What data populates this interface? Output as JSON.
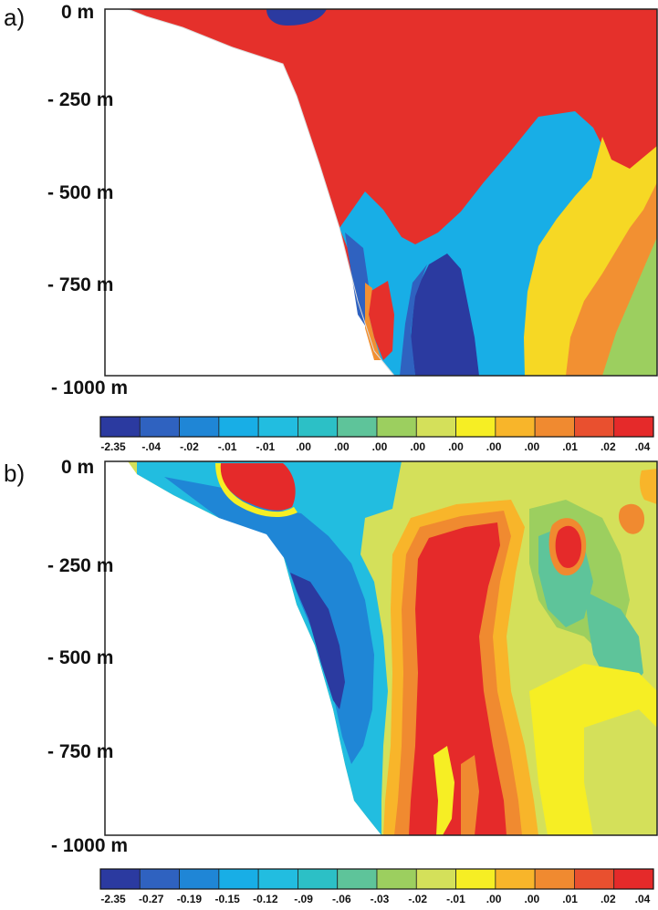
{
  "panels": [
    {
      "label": "a)",
      "depth_labels": [
        "0 m",
        "- 250 m",
        "- 500 m",
        "- 750 m",
        "- 1000 m"
      ],
      "colorbar_ticks": [
        "-2.35",
        "-.04",
        "-.02",
        "-.01",
        "-.01",
        ".00",
        ".00",
        ".00",
        ".00",
        ".00",
        ".00",
        ".00",
        ".01",
        ".02",
        ".04"
      ]
    },
    {
      "label": "b)",
      "depth_labels": [
        "0 m",
        "- 250 m",
        "- 500 m",
        "- 750 m",
        "- 1000 m"
      ],
      "colorbar_ticks": [
        "-2.35",
        "-0.27",
        "-0.19",
        "-0.15",
        "-0.12",
        "-.09",
        "-.06",
        "-.03",
        "-.02",
        "-.01",
        ".00",
        ".00",
        ".01",
        ".02",
        ".04"
      ]
    }
  ],
  "colorbar_colors": [
    "#2b3aa0",
    "#2f62c0",
    "#1f86d6",
    "#18aee6",
    "#22bde0",
    "#2cc0c6",
    "#5ec49a",
    "#9ccf5f",
    "#d4e05a",
    "#f6ee24",
    "#f8b52a",
    "#f08a30",
    "#e9502f",
    "#e52a2a"
  ]
}
